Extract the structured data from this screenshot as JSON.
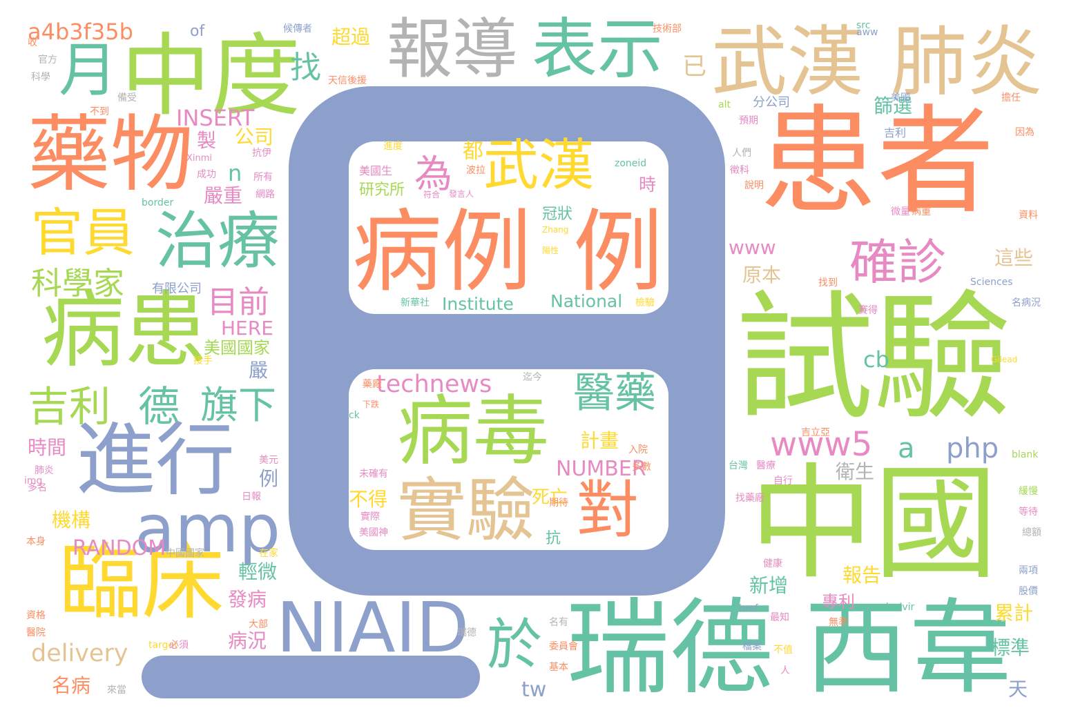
{
  "palette": {
    "sage": "#66c2a5",
    "coral": "#fc8d62",
    "lavender": "#8da0cb",
    "pink": "#e78ac3",
    "lime": "#a6d854",
    "yellow": "#ffd92f",
    "tan": "#e5c494",
    "gray": "#b3b3b3",
    "shape_fill": "#8da0cb",
    "background": "#ffffff"
  },
  "words": [
    {
      "text": "患者",
      "color": "coral"
    },
    {
      "text": "試驗",
      "color": "lime"
    },
    {
      "text": "中國",
      "color": "lime"
    },
    {
      "text": "瑞德",
      "color": "sage"
    },
    {
      "text": "西韋",
      "color": "sage"
    },
    {
      "text": "病例",
      "color": "coral"
    },
    {
      "text": "例",
      "color": "coral"
    },
    {
      "text": "中度",
      "color": "lime"
    },
    {
      "text": "藥物",
      "color": "coral"
    },
    {
      "text": "病患",
      "color": "lime"
    },
    {
      "text": "武漢",
      "color": "tan"
    },
    {
      "text": "肺炎",
      "color": "tan"
    },
    {
      "text": "報導",
      "color": "gray"
    },
    {
      "text": "表示",
      "color": "sage"
    },
    {
      "text": "病毒",
      "color": "lime"
    },
    {
      "text": "實驗",
      "color": "tan"
    },
    {
      "text": "武漢",
      "color": "yellow"
    },
    {
      "text": "進行",
      "color": "lavender"
    },
    {
      "text": "臨床",
      "color": "yellow"
    },
    {
      "text": "NIAID",
      "color": "lavender"
    },
    {
      "text": "amp",
      "color": "lavender"
    },
    {
      "text": "治療",
      "color": "sage"
    },
    {
      "text": "官員",
      "color": "yellow"
    },
    {
      "text": "月",
      "color": "sage"
    },
    {
      "text": "對",
      "color": "coral"
    },
    {
      "text": "於",
      "color": "sage"
    },
    {
      "text": "確診",
      "color": "pink"
    },
    {
      "text": "吉利",
      "color": "lime"
    },
    {
      "text": "德",
      "color": "sage"
    },
    {
      "text": "旗下",
      "color": "sage"
    },
    {
      "text": "醫藥",
      "color": "sage"
    },
    {
      "text": "www5",
      "color": "pink"
    },
    {
      "text": "technews",
      "color": "pink"
    },
    {
      "text": "科學家",
      "color": "lime"
    },
    {
      "text": "目前",
      "color": "pink"
    },
    {
      "text": "為",
      "color": "pink"
    },
    {
      "text": "a4b3f35b",
      "color": "coral"
    },
    {
      "text": "INSERT",
      "color": "pink"
    },
    {
      "text": "delivery",
      "color": "tan"
    },
    {
      "text": "找",
      "color": "sage"
    },
    {
      "text": "已",
      "color": "tan"
    },
    {
      "text": "php",
      "color": "lavender"
    },
    {
      "text": "a",
      "color": "sage"
    },
    {
      "text": "cb",
      "color": "sage"
    },
    {
      "text": "NUMBER",
      "color": "pink"
    },
    {
      "text": "RANDOM",
      "color": "pink"
    },
    {
      "text": "Institute",
      "color": "sage"
    },
    {
      "text": "National",
      "color": "sage"
    },
    {
      "text": "HERE",
      "color": "pink"
    },
    {
      "text": "www",
      "color": "pink"
    },
    {
      "text": "tw",
      "color": "lavender"
    },
    {
      "text": "n",
      "color": "sage"
    },
    {
      "text": "都",
      "color": "yellow"
    },
    {
      "text": "時",
      "color": "pink"
    },
    {
      "text": "冠狀",
      "color": "sage"
    },
    {
      "text": "研究所",
      "color": "lime"
    },
    {
      "text": "計畫",
      "color": "yellow"
    },
    {
      "text": "死亡",
      "color": "yellow"
    },
    {
      "text": "不得",
      "color": "yellow"
    },
    {
      "text": "抗",
      "color": "sage"
    },
    {
      "text": "製",
      "color": "pink"
    },
    {
      "text": "公司",
      "color": "yellow"
    },
    {
      "text": "嚴重",
      "color": "pink"
    },
    {
      "text": "美國國家",
      "color": "lime"
    },
    {
      "text": "嚴",
      "color": "lavender"
    },
    {
      "text": "時間",
      "color": "pink"
    },
    {
      "text": "機構",
      "color": "yellow"
    },
    {
      "text": "名病",
      "color": "coral"
    },
    {
      "text": "發病",
      "color": "pink"
    },
    {
      "text": "病況",
      "color": "pink"
    },
    {
      "text": "輕微",
      "color": "sage"
    },
    {
      "text": "例",
      "color": "lavender"
    },
    {
      "text": "新增",
      "color": "sage"
    },
    {
      "text": "報告",
      "color": "yellow"
    },
    {
      "text": "專利",
      "color": "pink"
    },
    {
      "text": "累計",
      "color": "yellow"
    },
    {
      "text": "標準",
      "color": "sage"
    },
    {
      "text": "天",
      "color": "lavender"
    },
    {
      "text": "衛生",
      "color": "gray"
    },
    {
      "text": "原本",
      "color": "tan"
    },
    {
      "text": "這些",
      "color": "tan"
    },
    {
      "text": "篩選",
      "color": "sage"
    },
    {
      "text": "超過",
      "color": "yellow"
    },
    {
      "text": "of",
      "color": "lavender"
    },
    {
      "text": "有限公司",
      "color": "lavender"
    },
    {
      "text": "美國生",
      "color": "pink"
    },
    {
      "text": "src",
      "color": "sage"
    },
    {
      "text": "分公司",
      "color": "lavender"
    },
    {
      "text": "吉利",
      "color": "lavender"
    },
    {
      "text": "Sciences",
      "color": "lavender"
    },
    {
      "text": "remdesivir",
      "color": "sage"
    },
    {
      "text": "zoneid",
      "color": "sage"
    },
    {
      "text": "border",
      "color": "sage"
    },
    {
      "text": "Xinmi",
      "color": "pink"
    },
    {
      "text": "Zhang",
      "color": "yellow"
    },
    {
      "text": "Gilead",
      "color": "yellow"
    },
    {
      "text": "blank",
      "color": "lime"
    },
    {
      "text": "href",
      "color": "lavender"
    },
    {
      "text": "target",
      "color": "yellow"
    },
    {
      "text": "img",
      "color": "pink"
    },
    {
      "text": "ck",
      "color": "sage"
    },
    {
      "text": "alt",
      "color": "lime"
    },
    {
      "text": "aww",
      "color": "lavender"
    },
    {
      "text": "技術部",
      "color": "coral"
    },
    {
      "text": "候傳者",
      "color": "lavender"
    },
    {
      "text": "天信後援",
      "color": "coral"
    },
    {
      "text": "官方",
      "color": "gray"
    },
    {
      "text": "科學",
      "color": "gray"
    },
    {
      "text": "備受",
      "color": "gray"
    },
    {
      "text": "不到",
      "color": "coral"
    },
    {
      "text": "抗伊",
      "color": "pink"
    },
    {
      "text": "所有",
      "color": "pink"
    },
    {
      "text": "成功",
      "color": "pink"
    },
    {
      "text": "網路",
      "color": "pink"
    },
    {
      "text": "預期",
      "color": "pink"
    },
    {
      "text": "人們",
      "color": "gray"
    },
    {
      "text": "徵科",
      "color": "pink"
    },
    {
      "text": "進度",
      "color": "yellow"
    },
    {
      "text": "波拉",
      "color": "coral"
    },
    {
      "text": "符合",
      "color": "pink"
    },
    {
      "text": "發言人",
      "color": "pink"
    },
    {
      "text": "陽性",
      "color": "yellow"
    },
    {
      "text": "新華社",
      "color": "sage"
    },
    {
      "text": "檢驗",
      "color": "yellow"
    },
    {
      "text": "迄今",
      "color": "gray"
    },
    {
      "text": "下跌",
      "color": "coral"
    },
    {
      "text": "藥廠",
      "color": "coral"
    },
    {
      "text": "多數",
      "color": "coral"
    },
    {
      "text": "入院",
      "color": "coral"
    },
    {
      "text": "病重",
      "color": "coral"
    },
    {
      "text": "美國",
      "color": "lavender"
    },
    {
      "text": "找到",
      "color": "coral"
    },
    {
      "text": "賽得",
      "color": "pink"
    },
    {
      "text": "台灣",
      "color": "sage"
    },
    {
      "text": "醫療",
      "color": "pink"
    },
    {
      "text": "自行",
      "color": "pink"
    },
    {
      "text": "美元",
      "color": "pink"
    },
    {
      "text": "股價",
      "color": "lavender"
    },
    {
      "text": "兩項",
      "color": "lavender"
    },
    {
      "text": "等待",
      "color": "pink"
    },
    {
      "text": "緩慢",
      "color": "lime"
    },
    {
      "text": "總額",
      "color": "gray"
    },
    {
      "text": "名病況",
      "color": "lavender"
    },
    {
      "text": "資料",
      "color": "coral"
    },
    {
      "text": "微量",
      "color": "pink"
    },
    {
      "text": "因為",
      "color": "coral"
    },
    {
      "text": "吉立亞",
      "color": "coral"
    },
    {
      "text": "委員會",
      "color": "coral"
    },
    {
      "text": "基本",
      "color": "coral"
    },
    {
      "text": "瑞德",
      "color": "gray"
    },
    {
      "text": "檔案",
      "color": "lavender"
    },
    {
      "text": "必須",
      "color": "pink"
    },
    {
      "text": "本身",
      "color": "coral"
    },
    {
      "text": "資格",
      "color": "coral"
    },
    {
      "text": "醫院",
      "color": "coral"
    },
    {
      "text": "在家",
      "color": "yellow"
    },
    {
      "text": "多名",
      "color": "pink"
    },
    {
      "text": "中國國家",
      "color": "gray"
    },
    {
      "text": "日報",
      "color": "pink"
    },
    {
      "text": "美國神",
      "color": "pink"
    },
    {
      "text": "未確有",
      "color": "pink"
    },
    {
      "text": "期待",
      "color": "coral"
    },
    {
      "text": "健康",
      "color": "pink"
    },
    {
      "text": "來當",
      "color": "gray"
    },
    {
      "text": "大部",
      "color": "coral"
    },
    {
      "text": "人",
      "color": "pink"
    },
    {
      "text": "不值",
      "color": "yellow"
    },
    {
      "text": "最知",
      "color": "pink"
    },
    {
      "text": "名有",
      "color": "gray"
    },
    {
      "text": "無準",
      "color": "coral"
    },
    {
      "text": "收",
      "color": "coral"
    },
    {
      "text": "擔任",
      "color": "coral"
    },
    {
      "text": "實際",
      "color": "pink"
    },
    {
      "text": "接手",
      "color": "yellow"
    },
    {
      "text": "肺炎",
      "color": "pink"
    },
    {
      "text": "找藥廠",
      "color": "pink"
    },
    {
      "text": "說明",
      "color": "coral"
    }
  ]
}
